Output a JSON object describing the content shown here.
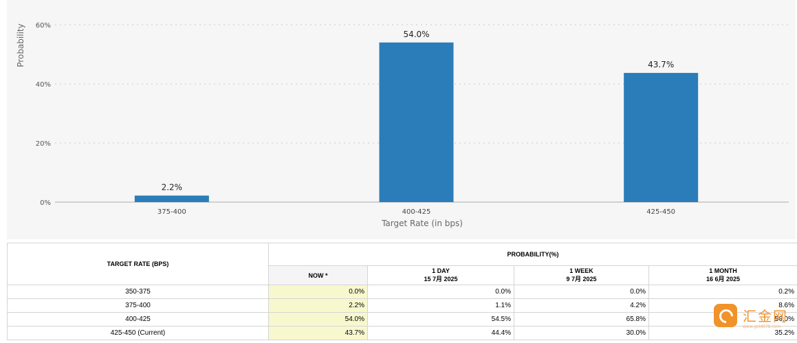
{
  "chart_data": {
    "type": "bar",
    "categories": [
      "375-400",
      "400-425",
      "425-450"
    ],
    "values": [
      2.2,
      54.0,
      43.7
    ],
    "data_labels": [
      "2.2%",
      "54.0%",
      "43.7%"
    ],
    "y_ticks": [
      "0%",
      "20%",
      "40%",
      "60%"
    ],
    "y_tick_values": [
      0,
      20,
      40,
      60
    ],
    "xlabel": "Target Rate (in bps)",
    "ylabel": "Probability",
    "ylim": [
      0,
      60
    ],
    "grid": true,
    "bar_color": "#2a7db8"
  },
  "table": {
    "target_rate_header": "TARGET RATE (BPS)",
    "probability_header": "PROBABILITY(%)",
    "columns": [
      {
        "line1": "NOW *",
        "line2": ""
      },
      {
        "line1": "1 DAY",
        "line2": "15 7月 2025"
      },
      {
        "line1": "1 WEEK",
        "line2": "9 7月 2025"
      },
      {
        "line1": "1 MONTH",
        "line2": "16 6月 2025"
      }
    ],
    "rows": [
      {
        "rate": "350-375",
        "values": [
          "0.0%",
          "0.0%",
          "0.0%",
          "0.2%"
        ]
      },
      {
        "rate": "375-400",
        "values": [
          "2.2%",
          "1.1%",
          "4.2%",
          "8.6%"
        ]
      },
      {
        "rate": "400-425",
        "values": [
          "54.0%",
          "54.5%",
          "65.8%",
          "56.0%"
        ]
      },
      {
        "rate": "425-450 (Current)",
        "values": [
          "43.7%",
          "44.4%",
          "30.0%",
          "35.2%"
        ]
      }
    ]
  },
  "watermark": {
    "text": "汇金网",
    "url": "www.gold678.com"
  }
}
